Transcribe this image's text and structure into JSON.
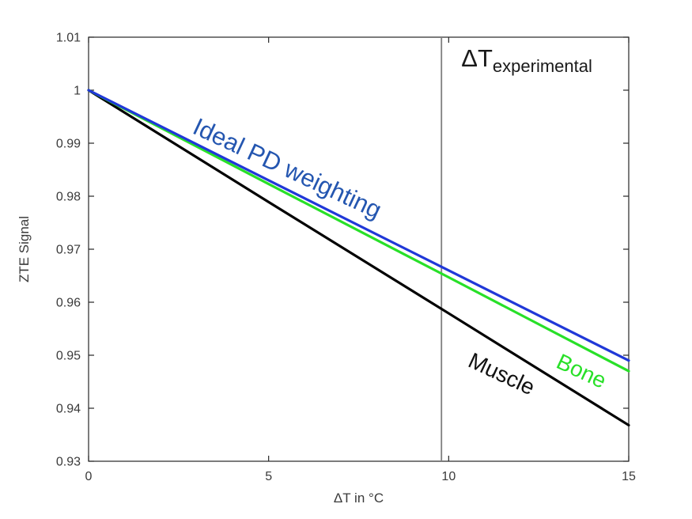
{
  "figure": {
    "background": "#ffffff"
  },
  "chart_data": {
    "type": "line",
    "title": "",
    "xlabel": "ΔT in °C",
    "ylabel": "ZTE Signal",
    "xlim": [
      0,
      15
    ],
    "ylim": [
      0.93,
      1.01
    ],
    "xticks": [
      0,
      5,
      10,
      15
    ],
    "yticks": [
      0.93,
      0.94,
      0.95,
      0.96,
      0.97,
      0.98,
      0.99,
      1,
      1.01
    ],
    "grid": false,
    "legend": "none (labels drawn as in-plot annotations)",
    "axis_color": "#262626",
    "series": [
      {
        "name": "Ideal PD weighting",
        "color": "#2038d8",
        "width": 3.2,
        "x": [
          0,
          5,
          10,
          15
        ],
        "y": [
          1.0,
          0.983,
          0.966,
          0.949
        ]
      },
      {
        "name": "Bone",
        "color": "#28e028",
        "width": 3.2,
        "x": [
          0,
          5,
          10,
          15
        ],
        "y": [
          1.0,
          0.9823,
          0.9647,
          0.947
        ]
      },
      {
        "name": "Muscle",
        "color": "#000000",
        "width": 3.2,
        "x": [
          0,
          5,
          10,
          15
        ],
        "y": [
          1.0,
          0.9789,
          0.9579,
          0.9368
        ]
      }
    ],
    "vline": {
      "x": 9.8,
      "color": "#7f7f7f",
      "width": 1.8,
      "label": "ΔT experimental"
    },
    "annotations": [
      {
        "id": "dt-experimental",
        "main": "ΔT",
        "sub": "experimental",
        "x": 10.35,
        "y": 1.0045,
        "rotation": 0,
        "size": 31,
        "sub_size": 22,
        "color": "#1a1a1a"
      },
      {
        "id": "ideal-pd-weighting",
        "main": "Ideal PD weighting",
        "x": 2.85,
        "y": 0.992,
        "rotation": 25,
        "size": 31,
        "color": "#2456b0"
      },
      {
        "id": "muscle",
        "main": "Muscle",
        "x": 10.5,
        "y": 0.948,
        "rotation": 25,
        "size": 28,
        "color": "#111111"
      },
      {
        "id": "bone",
        "main": "Bone",
        "x": 12.95,
        "y": 0.9478,
        "rotation": 25,
        "size": 28,
        "color": "#28e028"
      }
    ]
  }
}
